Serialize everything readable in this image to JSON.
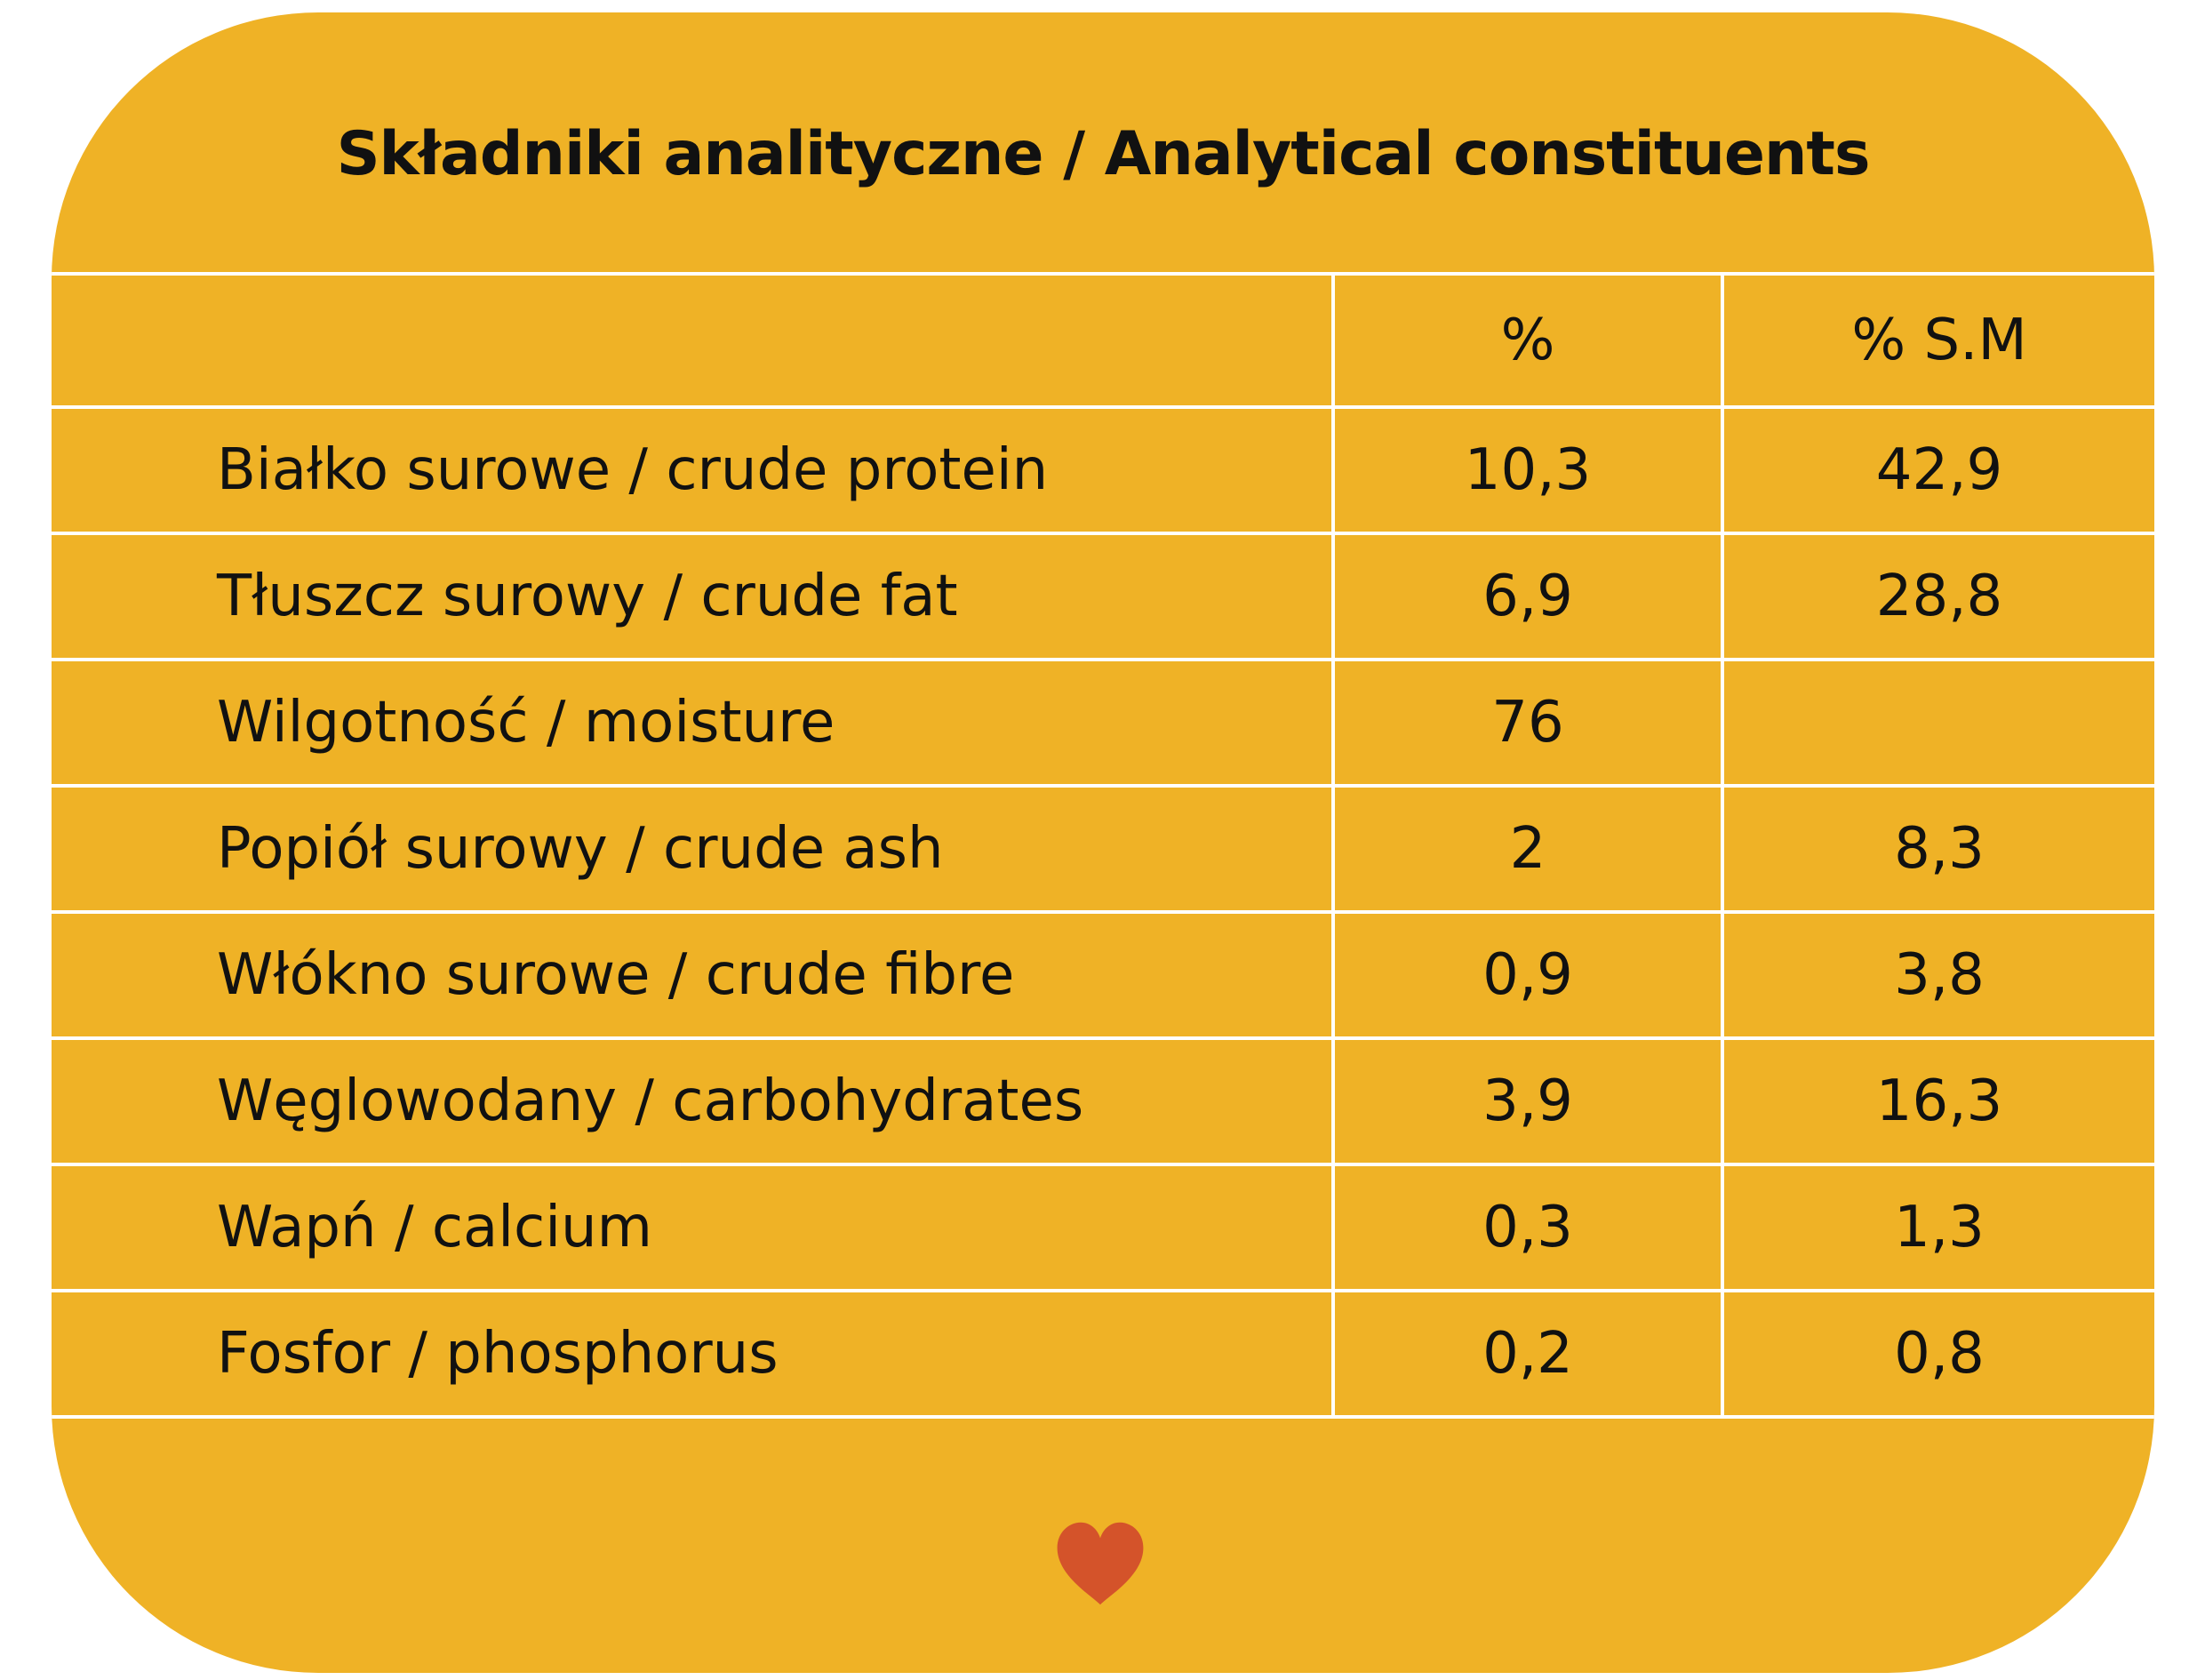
{
  "title": "Składniki analityczne / Analytical constituents",
  "table": {
    "headers": [
      "",
      "%",
      "% S.M"
    ],
    "rows": [
      {
        "label": "Białko surowe / crude protein",
        "pct": "10,3",
        "dm": "42,9"
      },
      {
        "label": "Tłuszcz surowy / crude fat",
        "pct": "6,9",
        "dm": "28,8"
      },
      {
        "label": "Wilgotność / moisture",
        "pct": "76",
        "dm": ""
      },
      {
        "label": "Popiół surowy / crude ash",
        "pct": "2",
        "dm": "8,3"
      },
      {
        "label": "Włókno surowe / crude fibre",
        "pct": "0,9",
        "dm": "3,8"
      },
      {
        "label": "Węglowodany / carbohydrates",
        "pct": "3,9",
        "dm": "16,3"
      },
      {
        "label": "Wapń / calcium",
        "pct": "0,3",
        "dm": "1,3"
      },
      {
        "label": "Fosfor / phosphorus",
        "pct": "0,2",
        "dm": "0,8"
      }
    ]
  },
  "colors": {
    "background": "#EFB226",
    "grid": "#FFFFFF",
    "text": "#111111",
    "heart": "#D4532A"
  },
  "icons": {
    "footer": "heart-icon"
  }
}
